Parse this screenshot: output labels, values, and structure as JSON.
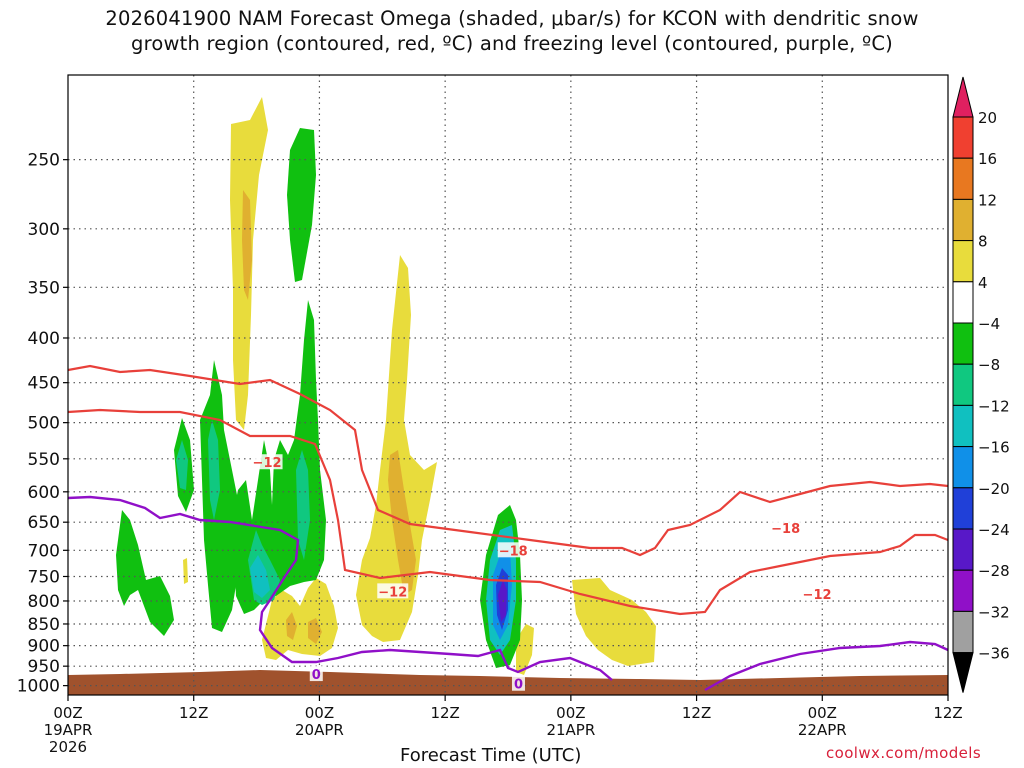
{
  "title_line1": "2026041900 NAM Forecast Omega (shaded, μbar/s) for KCON with dendritic snow",
  "title_line2": "growth region (contoured, red, ºC) and freezing level (contoured, purple, ºC)",
  "watermark": "coolwx.com/models",
  "chart_data": {
    "type": "contour",
    "title": "2026041900 NAM Forecast Omega (shaded, μbar/s) for KCON with dendritic snow growth region (contoured, red, ºC) and freezing level (contoured, purple, ºC)",
    "xlabel": "Forecast Time (UTC)",
    "ylabel": "",
    "x_ticks": [
      {
        "hour": 0,
        "l1": "00Z",
        "l2": "19APR",
        "l3": "2026"
      },
      {
        "hour": 12,
        "l1": "12Z",
        "l2": "",
        "l3": ""
      },
      {
        "hour": 24,
        "l1": "00Z",
        "l2": "20APR",
        "l3": ""
      },
      {
        "hour": 36,
        "l1": "12Z",
        "l2": "",
        "l3": ""
      },
      {
        "hour": 48,
        "l1": "00Z",
        "l2": "21APR",
        "l3": ""
      },
      {
        "hour": 60,
        "l1": "12Z",
        "l2": "",
        "l3": ""
      },
      {
        "hour": 72,
        "l1": "00Z",
        "l2": "22APR",
        "l3": ""
      },
      {
        "hour": 84,
        "l1": "12Z",
        "l2": "",
        "l3": ""
      }
    ],
    "xlim": [
      0,
      84
    ],
    "y_ticks": [
      250,
      300,
      350,
      400,
      450,
      500,
      550,
      600,
      650,
      700,
      750,
      800,
      850,
      900,
      950,
      1000
    ],
    "ylim": [
      1025,
      200
    ],
    "y_scale": "log",
    "grid": true,
    "colorbar": {
      "labels": [
        "20",
        "16",
        "12",
        "8",
        "4",
        "−4",
        "−8",
        "−12",
        "−16",
        "−20",
        "−24",
        "−28",
        "−32",
        "−36"
      ],
      "colors": [
        "#e02060",
        "#f04030",
        "#e87820",
        "#e0b030",
        "#e8dc3c",
        "#ffffff",
        "#10c010",
        "#10c880",
        "#10c0c0",
        "#1090e8",
        "#2040d8",
        "#5818c8",
        "#9010c8",
        "#a0a0a0",
        "#000000"
      ]
    },
    "contour_labels": [
      {
        "text": "−12",
        "color": "#e8403a",
        "hour": 19,
        "p": 555
      },
      {
        "text": "−18",
        "color": "#e8403a",
        "hour": 42.5,
        "p": 700
      },
      {
        "text": "−12",
        "color": "#e8403a",
        "hour": 31,
        "p": 780
      },
      {
        "text": "−18",
        "color": "#e8403a",
        "hour": 68.5,
        "p": 660
      },
      {
        "text": "−12",
        "color": "#e8403a",
        "hour": 71.5,
        "p": 785
      },
      {
        "text": "0",
        "color": "#9010c8",
        "hour": 23.7,
        "p": 970
      },
      {
        "text": "0",
        "color": "#9010c8",
        "hour": 43,
        "p": 995
      }
    ]
  }
}
